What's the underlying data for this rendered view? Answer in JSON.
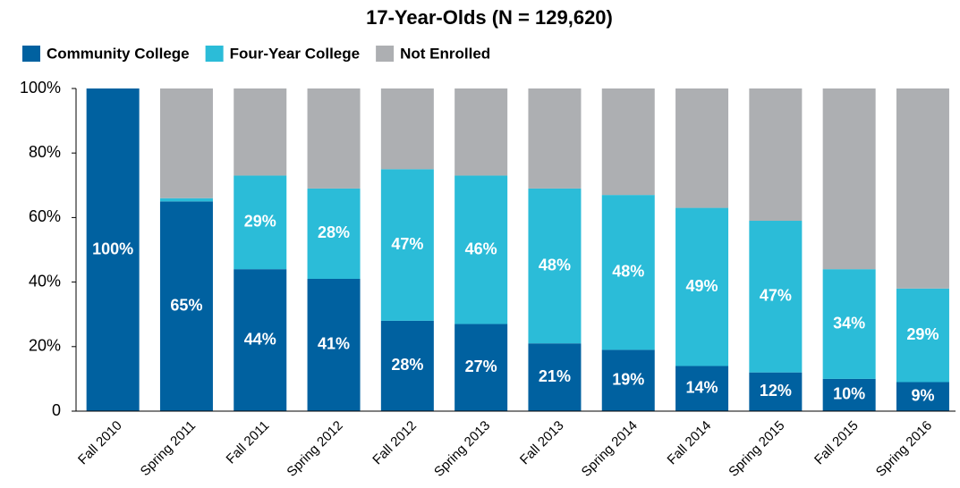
{
  "chart_data": {
    "type": "stacked_bar",
    "title": "17-Year-Olds (N = 129,620)",
    "categories": [
      "Fall 2010",
      "Spring 2011",
      "Fall 2011",
      "Spring 2012",
      "Fall 2012",
      "Spring 2013",
      "Fall 2013",
      "Spring 2014",
      "Fall 2014",
      "Spring 2015",
      "Fall 2015",
      "Spring 2016"
    ],
    "series": [
      {
        "name": "Community College",
        "color": "#0061a0",
        "values": [
          100,
          65,
          44,
          41,
          28,
          27,
          21,
          19,
          14,
          12,
          10,
          9
        ],
        "value_labels": [
          "100%",
          "65%",
          "44%",
          "41%",
          "28%",
          "27%",
          "21%",
          "19%",
          "14%",
          "12%",
          "10%",
          "9%"
        ]
      },
      {
        "name": "Four-Year College",
        "color": "#2bbcd8",
        "values": [
          0,
          1,
          29,
          28,
          47,
          46,
          48,
          48,
          49,
          47,
          34,
          29
        ],
        "value_labels": [
          null,
          null,
          "29%",
          "28%",
          "47%",
          "46%",
          "48%",
          "48%",
          "49%",
          "47%",
          "34%",
          "29%"
        ]
      },
      {
        "name": "Not Enrolled",
        "color": "#adafb2",
        "values": [
          0,
          34,
          27,
          31,
          25,
          27,
          31,
          33,
          37,
          41,
          56,
          62
        ]
      }
    ],
    "ylim": [
      0,
      100
    ],
    "yticks": [
      0,
      {
        "value": 20,
        "label": "20%"
      },
      {
        "value": 40,
        "label": "40%"
      },
      {
        "value": 60,
        "label": "60%"
      },
      {
        "value": 80,
        "label": "80%"
      },
      {
        "value": 100,
        "label": "100%"
      }
    ],
    "legend": "top-left"
  }
}
